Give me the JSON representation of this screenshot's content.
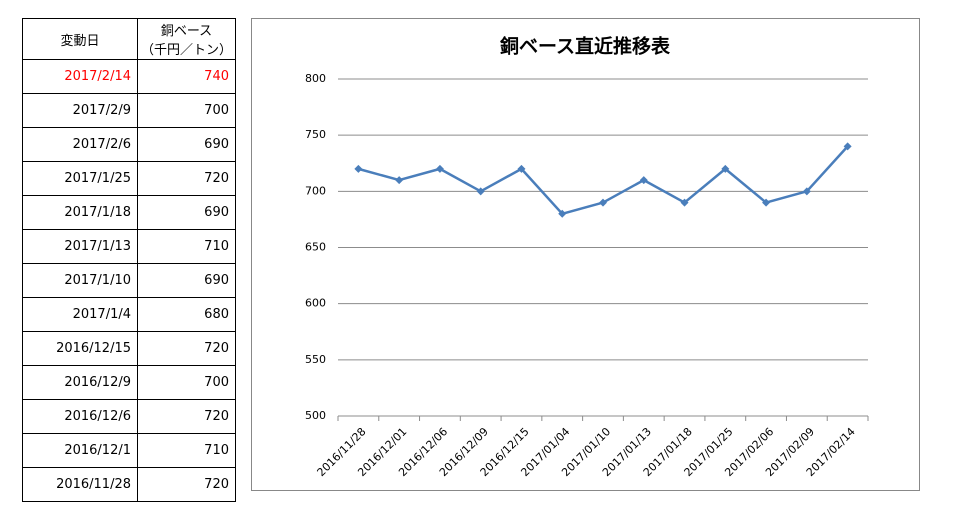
{
  "table": {
    "header": {
      "date": "変動日",
      "price": "銅ベース",
      "unit": "（千円／トン）"
    },
    "rows": [
      [
        "2017/2/14",
        740
      ],
      [
        "2017/2/9",
        700
      ],
      [
        "2017/2/6",
        690
      ],
      [
        "2017/1/25",
        720
      ],
      [
        "2017/1/18",
        690
      ],
      [
        "2017/1/13",
        710
      ],
      [
        "2017/1/10",
        690
      ],
      [
        "2017/1/4",
        680
      ],
      [
        "2016/12/15",
        720
      ],
      [
        "2016/12/9",
        700
      ],
      [
        "2016/12/6",
        720
      ],
      [
        "2016/12/1",
        710
      ],
      [
        "2016/11/28",
        720
      ]
    ],
    "highlight": {
      "row": 0,
      "color": "#ff0000"
    }
  },
  "chart_data": {
    "type": "line",
    "title": "銅ベース直近推移表",
    "categories": [
      "2016/11/28",
      "2016/12/01",
      "2016/12/06",
      "2016/12/09",
      "2016/12/15",
      "2017/01/04",
      "2017/01/10",
      "2017/01/13",
      "2017/01/18",
      "2017/01/25",
      "2017/02/06",
      "2017/02/09",
      "2017/02/14"
    ],
    "values": [
      720,
      710,
      720,
      700,
      720,
      680,
      690,
      710,
      690,
      720,
      690,
      700,
      740
    ],
    "color": "#4a7ebb",
    "ylim": [
      500,
      800
    ],
    "yticks": [
      500,
      550,
      600,
      650,
      700,
      750,
      800
    ],
    "grid": true
  }
}
